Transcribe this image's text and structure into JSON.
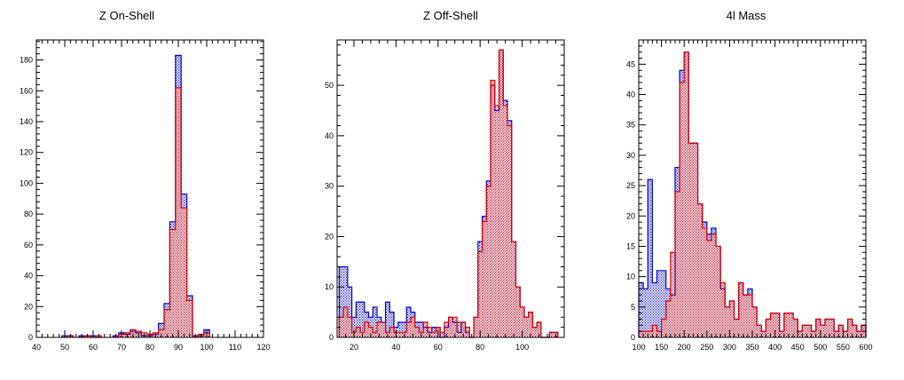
{
  "colors": {
    "series_a": "#0000cc",
    "series_b": "#dd0000",
    "axis": "#000000",
    "background": "#ffffff"
  },
  "chart_data": [
    {
      "type": "bar",
      "style": "step-histogram, overlaid, hatched fill",
      "title": "Z On-Shell",
      "xlabel": "",
      "ylabel": "",
      "xlim": [
        40,
        120
      ],
      "ylim": [
        0,
        193
      ],
      "xticks": [
        "40",
        "50",
        "60",
        "70",
        "80",
        "90",
        "100",
        "110",
        "120"
      ],
      "yticks": [
        "0",
        "20",
        "40",
        "60",
        "80",
        "100",
        "120",
        "140",
        "160",
        "180"
      ],
      "grid": false,
      "bin_width": 2,
      "x": [
        50,
        52,
        56,
        58,
        60,
        62,
        68,
        70,
        72,
        74,
        76,
        78,
        80,
        82,
        84,
        86,
        88,
        90,
        92,
        94,
        96,
        98,
        100
      ],
      "series": [
        {
          "values": [
            1,
            1,
            1,
            1,
            1,
            0,
            1,
            3,
            2,
            4,
            3,
            1,
            1,
            2,
            9,
            22,
            75,
            183,
            93,
            27,
            1,
            1,
            5
          ]
        },
        {
          "values": [
            0,
            1,
            0,
            1,
            0,
            1,
            0,
            2,
            3,
            5,
            4,
            3,
            2,
            3,
            5,
            18,
            70,
            162,
            84,
            24,
            0,
            2,
            3
          ]
        }
      ]
    },
    {
      "type": "bar",
      "style": "step-histogram, overlaid, hatched fill",
      "title": "Z Off-Shell",
      "xlabel": "",
      "ylabel": "",
      "xlim": [
        12,
        120
      ],
      "ylim": [
        0,
        59
      ],
      "xticks": [
        "20",
        "40",
        "60",
        "80",
        "100"
      ],
      "yticks": [
        "0",
        "10",
        "20",
        "30",
        "40",
        "50"
      ],
      "grid": false,
      "bin_width": 2,
      "x": [
        14,
        16,
        18,
        20,
        22,
        24,
        26,
        28,
        30,
        32,
        34,
        36,
        38,
        40,
        42,
        44,
        46,
        48,
        50,
        52,
        54,
        56,
        58,
        60,
        62,
        64,
        66,
        68,
        70,
        72,
        74,
        76,
        78,
        80,
        82,
        84,
        86,
        88,
        90,
        92,
        94,
        96,
        98,
        100,
        102,
        104,
        106,
        108,
        110,
        112,
        114,
        116
      ],
      "series": [
        {
          "values": [
            14,
            14,
            10,
            4,
            7,
            7,
            5,
            4,
            6,
            4,
            3,
            7,
            5,
            2,
            3,
            3,
            6,
            5,
            3,
            3,
            2,
            1,
            2,
            2,
            0,
            2,
            4,
            3,
            1,
            3,
            1,
            0,
            4,
            19,
            24,
            31,
            50,
            45,
            57,
            47,
            43,
            19,
            10,
            6,
            4,
            5,
            2,
            3,
            0,
            0,
            1,
            1
          ]
        },
        {
          "values": [
            4,
            6,
            4,
            1,
            2,
            1,
            3,
            2,
            1,
            3,
            3,
            1,
            2,
            1,
            1,
            1,
            3,
            4,
            2,
            1,
            3,
            2,
            1,
            2,
            1,
            3,
            4,
            4,
            3,
            3,
            2,
            0,
            4,
            17,
            23,
            30,
            51,
            46,
            57,
            46,
            42,
            19,
            10,
            6,
            4,
            5,
            2,
            3,
            0,
            0,
            1,
            1
          ]
        }
      ]
    },
    {
      "type": "bar",
      "style": "step-histogram, overlaid, hatched fill",
      "title": "4l Mass",
      "xlabel": "",
      "ylabel": "",
      "xlim": [
        100,
        600
      ],
      "ylim": [
        0,
        49
      ],
      "xticks": [
        "100",
        "150",
        "200",
        "250",
        "300",
        "350",
        "400",
        "450",
        "500",
        "550",
        "600"
      ],
      "yticks": [
        "0",
        "5",
        "10",
        "15",
        "20",
        "25",
        "30",
        "35",
        "40",
        "45"
      ],
      "grid": false,
      "bin_width": 10,
      "x": [
        105,
        115,
        125,
        135,
        145,
        155,
        165,
        175,
        185,
        195,
        205,
        215,
        225,
        235,
        245,
        255,
        265,
        275,
        285,
        295,
        305,
        315,
        325,
        335,
        345,
        355,
        365,
        375,
        385,
        395,
        405,
        415,
        425,
        435,
        445,
        455,
        465,
        475,
        485,
        495,
        505,
        515,
        525,
        535,
        545,
        555,
        565,
        575,
        585,
        595
      ],
      "series": [
        {
          "values": [
            9,
            8,
            26,
            9,
            11,
            11,
            8,
            7,
            28,
            44,
            47,
            32,
            32,
            22,
            19,
            17,
            18,
            15,
            8,
            5,
            6,
            3,
            9,
            7,
            8,
            5,
            2,
            1,
            3,
            4,
            4,
            1,
            4,
            4,
            3,
            1,
            2,
            2,
            1,
            3,
            2,
            3,
            3,
            1,
            2,
            1,
            3,
            2,
            1,
            2
          ]
        },
        {
          "values": [
            1,
            1,
            1,
            2,
            1,
            3,
            6,
            14,
            24,
            42,
            47,
            32,
            32,
            22,
            18,
            16,
            17,
            15,
            9,
            5,
            6,
            3,
            9,
            7,
            7,
            5,
            2,
            1,
            3,
            4,
            4,
            1,
            4,
            4,
            3,
            1,
            2,
            2,
            1,
            3,
            2,
            3,
            3,
            1,
            2,
            1,
            3,
            2,
            1,
            2
          ]
        }
      ]
    }
  ]
}
